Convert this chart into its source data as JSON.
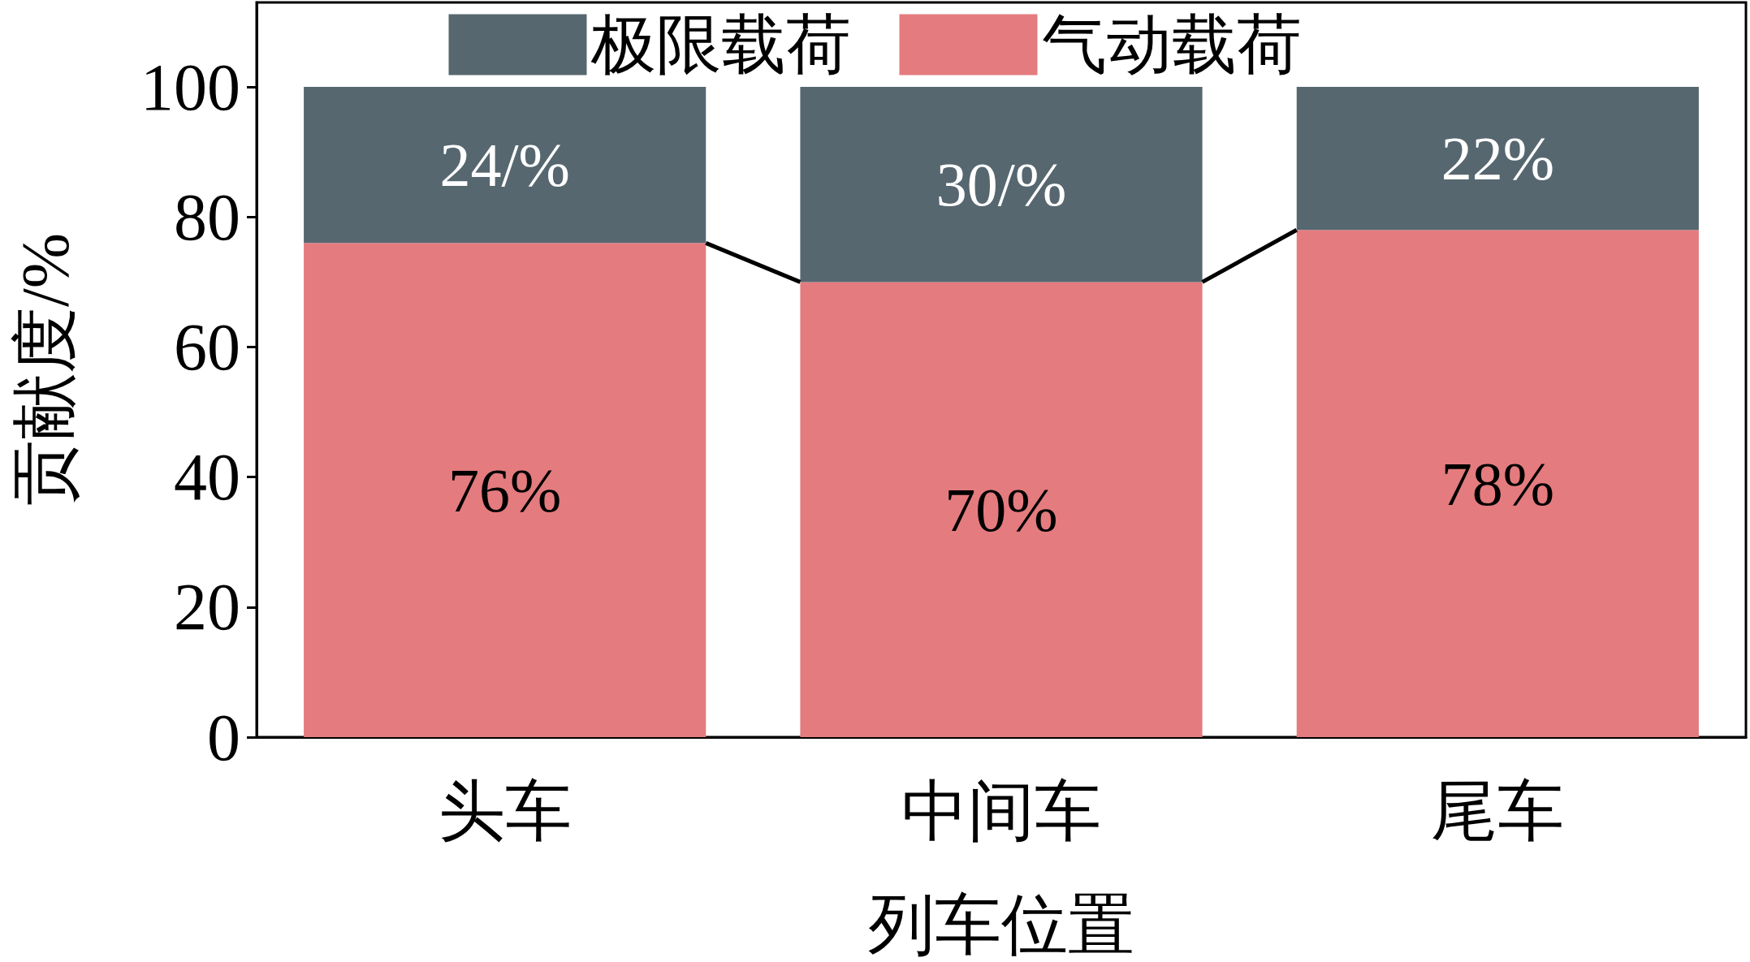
{
  "chart_data": {
    "type": "bar",
    "stacked": true,
    "xlabel": "列车位置",
    "ylabel": "贡献度/%",
    "categories": [
      "头车",
      "中间车",
      "尾车"
    ],
    "series": [
      {
        "name": "气动载荷",
        "color": "#e47b7e",
        "values": [
          76,
          70,
          78
        ],
        "value_labels": [
          "76%",
          "70%",
          "78%"
        ]
      },
      {
        "name": "极限载荷",
        "color": "#566770",
        "values": [
          24,
          30,
          22
        ],
        "value_labels": [
          "24/%",
          "30/%",
          "22%"
        ]
      }
    ],
    "ylim": [
      0,
      113
    ],
    "yticks": [
      0,
      20,
      40,
      60,
      80,
      100
    ],
    "grid": false,
    "legend": "top"
  }
}
